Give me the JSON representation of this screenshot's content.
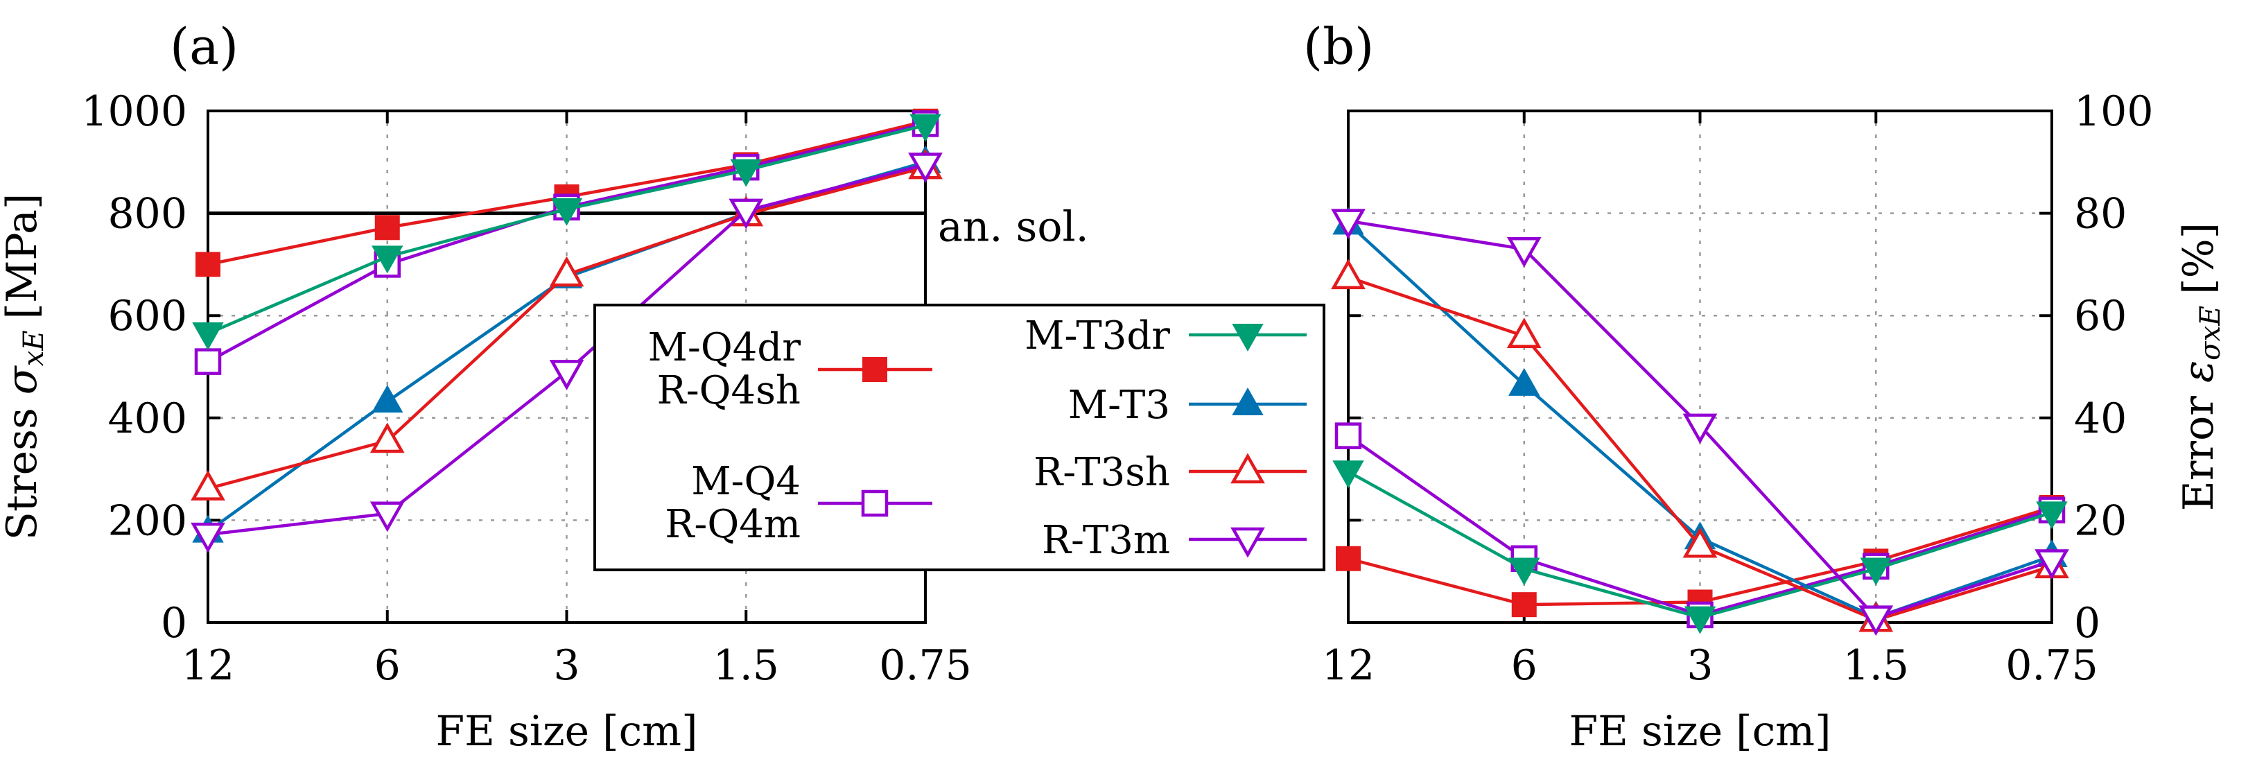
{
  "chart_data": [
    {
      "type": "line",
      "panel_label": "(a)",
      "categories": [
        "12",
        "6",
        "3",
        "1.5",
        "0.75"
      ],
      "xlabel": "FE size [cm]",
      "ylabel": {
        "prefix": "Stress ",
        "symbol": "σ",
        "sub": "xE",
        "unit": "[MPa]"
      },
      "ylim": [
        0,
        1000
      ],
      "yticks": [
        0,
        200,
        400,
        600,
        800,
        1000
      ],
      "grid": true,
      "reference_line": {
        "value": 800,
        "label": "an. sol."
      },
      "series": [
        {
          "key": "mq4dr",
          "name": "M-Q4dr / R-Q4sh",
          "color": "#e41a1c",
          "marker": "square-filled",
          "values": [
            700,
            772,
            832,
            895,
            980
          ]
        },
        {
          "key": "mq4",
          "name": "M-Q4 / R-Q4m",
          "color": "#9400d3",
          "marker": "square-open",
          "values": [
            510,
            700,
            812,
            890,
            975
          ]
        },
        {
          "key": "mt3dr",
          "name": "M-T3dr",
          "color": "#009e73",
          "marker": "tri-down-filled",
          "values": [
            565,
            715,
            808,
            884,
            972
          ]
        },
        {
          "key": "mt3",
          "name": "M-T3",
          "color": "#0072b2",
          "marker": "tri-up-filled",
          "values": [
            178,
            432,
            675,
            800,
            900
          ]
        },
        {
          "key": "rt3sh",
          "name": "R-T3sh",
          "color": "#e41a1c",
          "marker": "tri-up-open",
          "values": [
            262,
            355,
            680,
            798,
            890
          ]
        },
        {
          "key": "rt3m",
          "name": "R-T3m",
          "color": "#9400d3",
          "marker": "tri-down-open",
          "values": [
            172,
            213,
            490,
            805,
            895
          ]
        }
      ]
    },
    {
      "type": "line",
      "panel_label": "(b)",
      "categories": [
        "12",
        "6",
        "3",
        "1.5",
        "0.75"
      ],
      "xlabel": "FE size [cm]",
      "ylabel": {
        "prefix": "Error ",
        "symbol": "ε",
        "sub": "σxE",
        "unit": "[%]"
      },
      "ylim": [
        0,
        100
      ],
      "yticks": [
        0,
        20,
        40,
        60,
        80,
        100
      ],
      "grid": true,
      "series": [
        {
          "key": "mq4dr",
          "name": "M-Q4dr / R-Q4sh",
          "color": "#e41a1c",
          "marker": "square-filled",
          "values": [
            12.5,
            3.5,
            4,
            12,
            22.5
          ]
        },
        {
          "key": "mq4",
          "name": "M-Q4 / R-Q4m",
          "color": "#9400d3",
          "marker": "square-open",
          "values": [
            36.5,
            12.5,
            1.5,
            11,
            22
          ]
        },
        {
          "key": "mt3dr",
          "name": "M-T3dr",
          "color": "#009e73",
          "marker": "tri-down-filled",
          "values": [
            29.5,
            10.5,
            1,
            10.5,
            21.5
          ]
        },
        {
          "key": "mt3",
          "name": "M-T3",
          "color": "#0072b2",
          "marker": "tri-up-filled",
          "values": [
            78,
            46.5,
            16.5,
            1,
            13
          ]
        },
        {
          "key": "rt3sh",
          "name": "R-T3sh",
          "color": "#e41a1c",
          "marker": "tri-up-open",
          "values": [
            67.5,
            56,
            15,
            0.5,
            11
          ]
        },
        {
          "key": "rt3m",
          "name": "R-T3m",
          "color": "#9400d3",
          "marker": "tri-down-open",
          "values": [
            78.5,
            73,
            38.5,
            1,
            12
          ]
        }
      ]
    }
  ],
  "legend": {
    "col1": [
      {
        "key": "mq4dr",
        "lines": [
          "M-Q4dr",
          "R-Q4sh"
        ]
      },
      {
        "key": "mq4",
        "lines": [
          "M-Q4",
          "R-Q4m"
        ]
      }
    ],
    "col2": [
      {
        "key": "mt3dr",
        "label": "M-T3dr"
      },
      {
        "key": "mt3",
        "label": "M-T3"
      },
      {
        "key": "rt3sh",
        "label": "R-T3sh"
      },
      {
        "key": "rt3m",
        "label": "R-T3m"
      }
    ]
  }
}
